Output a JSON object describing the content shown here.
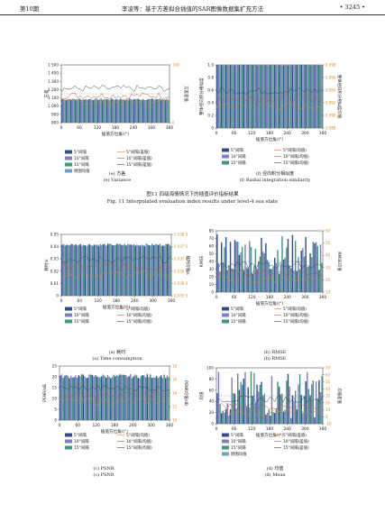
{
  "header": {
    "left": "第10期",
    "center": "李凌等：基于方差拟合插值的SAR图像数据集扩充方法",
    "right": "• 3245 •"
  },
  "xaxis": {
    "label": "插值方位角/(°)",
    "ticks": [
      "0",
      "60",
      "120",
      "180",
      "240",
      "300",
      "360"
    ]
  },
  "figure11": {
    "title_cn": "图11  四级海情情况下的插值评价指标结果",
    "title_en": "Fig. 11   Interpolated evaluation index results under level-4 sea state"
  },
  "panels": [
    {
      "id": "e",
      "ylabel": "方差",
      "y2label": "方差差值",
      "yticks": [
        "1 500",
        "1 400",
        "1 300",
        "1 200",
        "1 100",
        "1 000",
        "900",
        "800"
      ],
      "y2ticks": [
        "100",
        "0"
      ],
      "legend": [
        "5°间隔",
        "5°间隔(差值)",
        "10°间隔",
        "10°间隔(差值)",
        "15°间隔",
        "15°间隔(差值)",
        "原图均值"
      ],
      "cap_cn": "(e) 方差",
      "cap_en": "(e) Variance"
    },
    {
      "id": "f",
      "ylabel": "整体径向积分相似度",
      "y2label": "整体径向积分相似度均值",
      "yticks": [
        "1.0",
        "0.8",
        "0.6",
        "0.4",
        "0.2",
        "0"
      ],
      "y2ticks": [
        "0.998",
        "0.996",
        "0.994",
        "0.992",
        "0.990",
        "0.988"
      ],
      "legend": [
        "5°间隔",
        "5°间隔(均值)",
        "10°间隔",
        "10°间隔(均值)",
        "15°间隔",
        "15°间隔(均值)"
      ],
      "cap_cn": "(f) 径向积分相似度",
      "cap_en": "(f) Radial integration similarity"
    },
    {
      "id": "a",
      "ylabel": "耗时/s",
      "y2label": "耗时均值/s",
      "yticks": [
        "0.05",
        "0.04",
        "0.03",
        "0.02",
        "0.01",
        "0"
      ],
      "y2ticks": [
        "0.038 0",
        "0.037 5",
        "0.037 0",
        "0.036 5",
        "0.036 0",
        "0.035 5"
      ],
      "legend": [
        "5°间隔",
        "5°间隔(均值)",
        "10°间隔",
        "10°间隔(均值)",
        "15°间隔",
        "15°间隔(均值)"
      ],
      "cap_cn": "(a) 耗时",
      "cap_en": "(a) Time consumption"
    },
    {
      "id": "b",
      "ylabel": "RMSE",
      "y2label": "RMSE均值",
      "yticks": [
        "80",
        "70",
        "60",
        "50",
        "40",
        "30",
        "20",
        "10",
        "0"
      ],
      "y2ticks": [
        "60",
        "50",
        "40",
        "30",
        "20",
        "10"
      ],
      "legend": [
        "5°间隔",
        "5°间隔(均值)",
        "10°间隔",
        "10°间隔(均值)",
        "15°间隔",
        "15°间隔(均值)"
      ],
      "cap_cn": "(b) RMSE",
      "cap_en": "(b) RMSE"
    },
    {
      "id": "c",
      "ylabel": "PSNR/dB",
      "y2label": "PSNR均值/dB",
      "yticks": [
        "25",
        "20",
        "15",
        "10",
        "5",
        "0"
      ],
      "y2ticks": [
        "18",
        "16",
        "14",
        "12",
        "10"
      ],
      "legend": [
        "5°间隔",
        "5°间隔(均值)",
        "10°间隔",
        "10°间隔(均值)",
        "15°间隔",
        "15°间隔(均值)"
      ],
      "cap_cn": "(c) PSNR",
      "cap_en": "(c) PSNR"
    },
    {
      "id": "d",
      "ylabel": "均值",
      "y2label": "均值差值",
      "yticks": [
        "100",
        "80",
        "60",
        "40",
        "20",
        "0"
      ],
      "y2ticks": [
        "70",
        "60",
        "50",
        "40",
        "30",
        "20",
        "10",
        "0",
        "-10"
      ],
      "legend": [
        "5°间隔",
        "5°间隔(差值)",
        "10°间隔",
        "10°间隔(差值)",
        "15°间隔",
        "15°间隔(差值)",
        "原图均值"
      ],
      "cap_cn": "(d) 均值",
      "cap_en": "(d) Mean"
    }
  ],
  "colors": {
    "s5": "#2f4f8f",
    "s10": "#7f7fbf",
    "s15": "#3d9a7f",
    "orange": "#d98a2b",
    "red": "#c84a3a",
    "grid": "#888888"
  }
}
